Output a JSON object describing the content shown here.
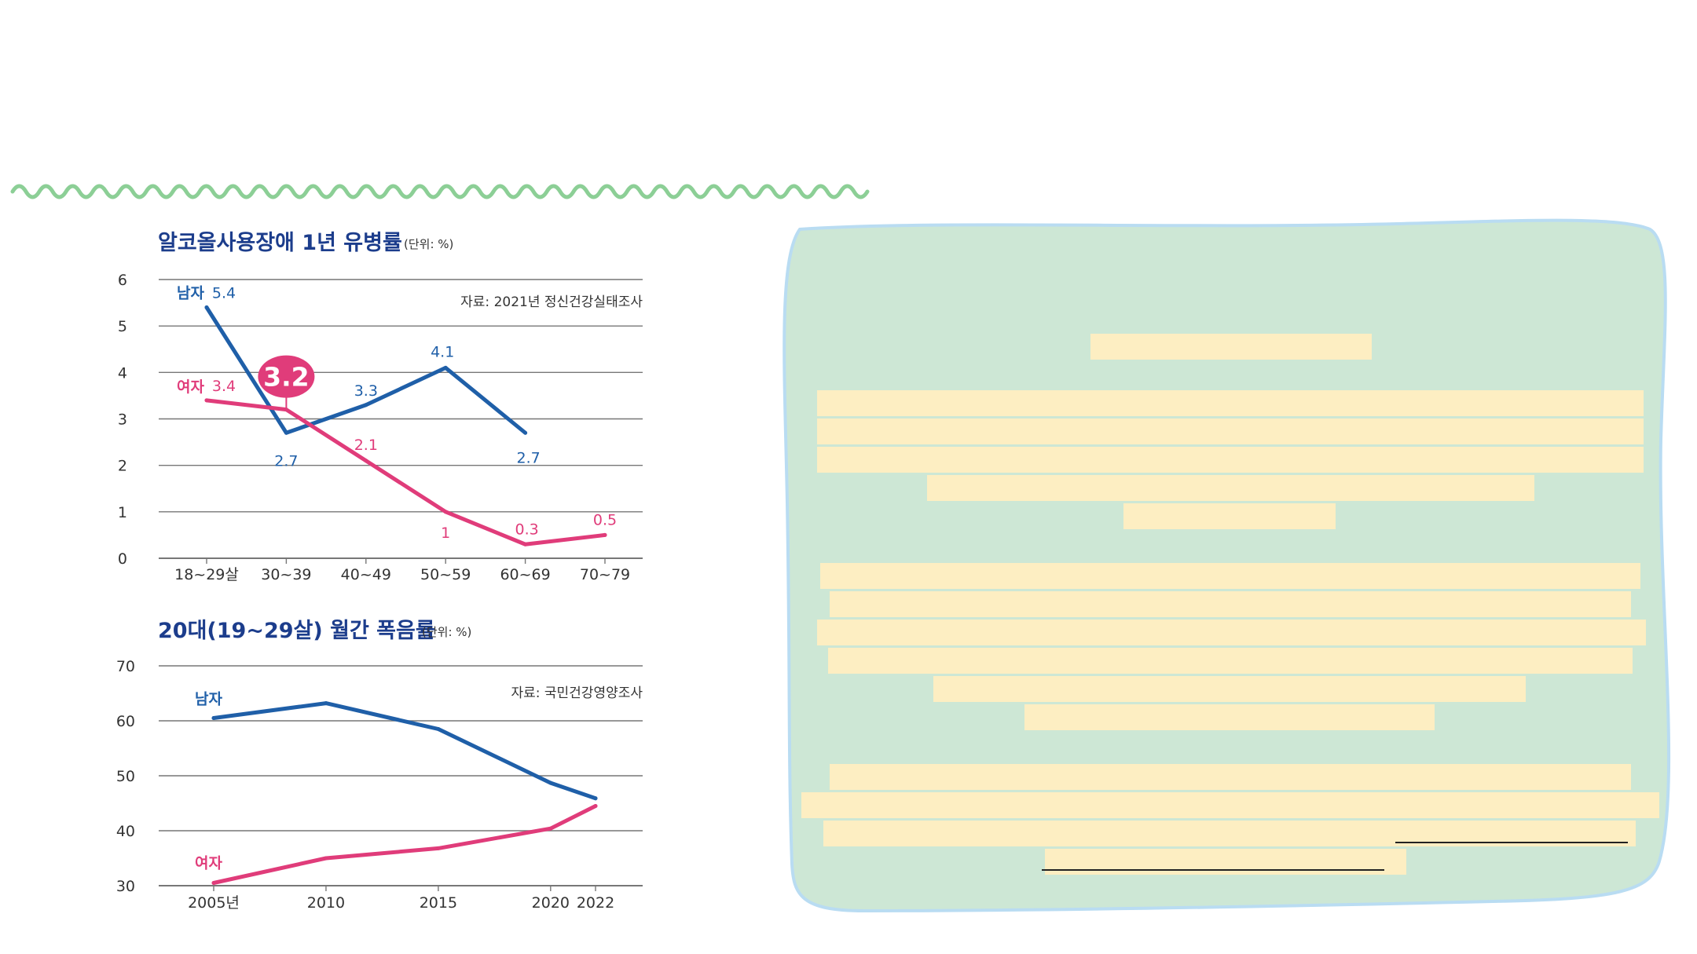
{
  "colors": {
    "male": "#1f5fa8",
    "female": "#e03c7a",
    "wave": "#8ccf96",
    "panel": "#cde7d5",
    "panel_border": "#b9dcf2",
    "redaction": "#fdeec2",
    "title": "#1c3d8c",
    "grid": "#777777"
  },
  "chart_data": [
    {
      "type": "line",
      "title": "알코올사용장애 1년 유병률",
      "unit": "(단위: %)",
      "source": "자료: 2021년 정신건강실태조사",
      "categories": [
        "18~29살",
        "30~39",
        "40~49",
        "50~59",
        "60~69",
        "70~79"
      ],
      "ylim": [
        0,
        6
      ],
      "yticks": [
        "0",
        "1",
        "2",
        "3",
        "4",
        "5",
        "6"
      ],
      "grid": true,
      "series": [
        {
          "name": "남자",
          "key": "male",
          "values": [
            5.4,
            2.7,
            3.3,
            4.1,
            2.7,
            null
          ],
          "labels": [
            "5.4",
            "2.7",
            "3.3",
            "4.1",
            "2.7",
            ""
          ]
        },
        {
          "name": "여자",
          "key": "female",
          "values": [
            3.4,
            3.2,
            2.1,
            1,
            0.3,
            0.5
          ],
          "labels": [
            "3.4",
            "",
            "2.1",
            "1",
            "0.3",
            "0.5"
          ]
        }
      ],
      "callout": {
        "series": "female",
        "index": 1,
        "text": "3.2"
      }
    },
    {
      "type": "line",
      "title": "20대(19~29살) 월간 폭음률",
      "unit": "(단위: %)",
      "source": "자료: 국민건강영양조사",
      "categories": [
        "2005년",
        "2010",
        "2015",
        "2020",
        "2022"
      ],
      "x": [
        2005,
        2010,
        2015,
        2020,
        2022
      ],
      "ylim": [
        30,
        70
      ],
      "yticks": [
        "30",
        "40",
        "50",
        "60",
        "70"
      ],
      "grid": true,
      "series": [
        {
          "name": "남자",
          "key": "male",
          "values": [
            60.5,
            63.2,
            58.5,
            48.7,
            45.9
          ]
        },
        {
          "name": "여자",
          "key": "female",
          "values": [
            30.5,
            35.0,
            36.8,
            40.4,
            44.5
          ]
        }
      ]
    }
  ]
}
